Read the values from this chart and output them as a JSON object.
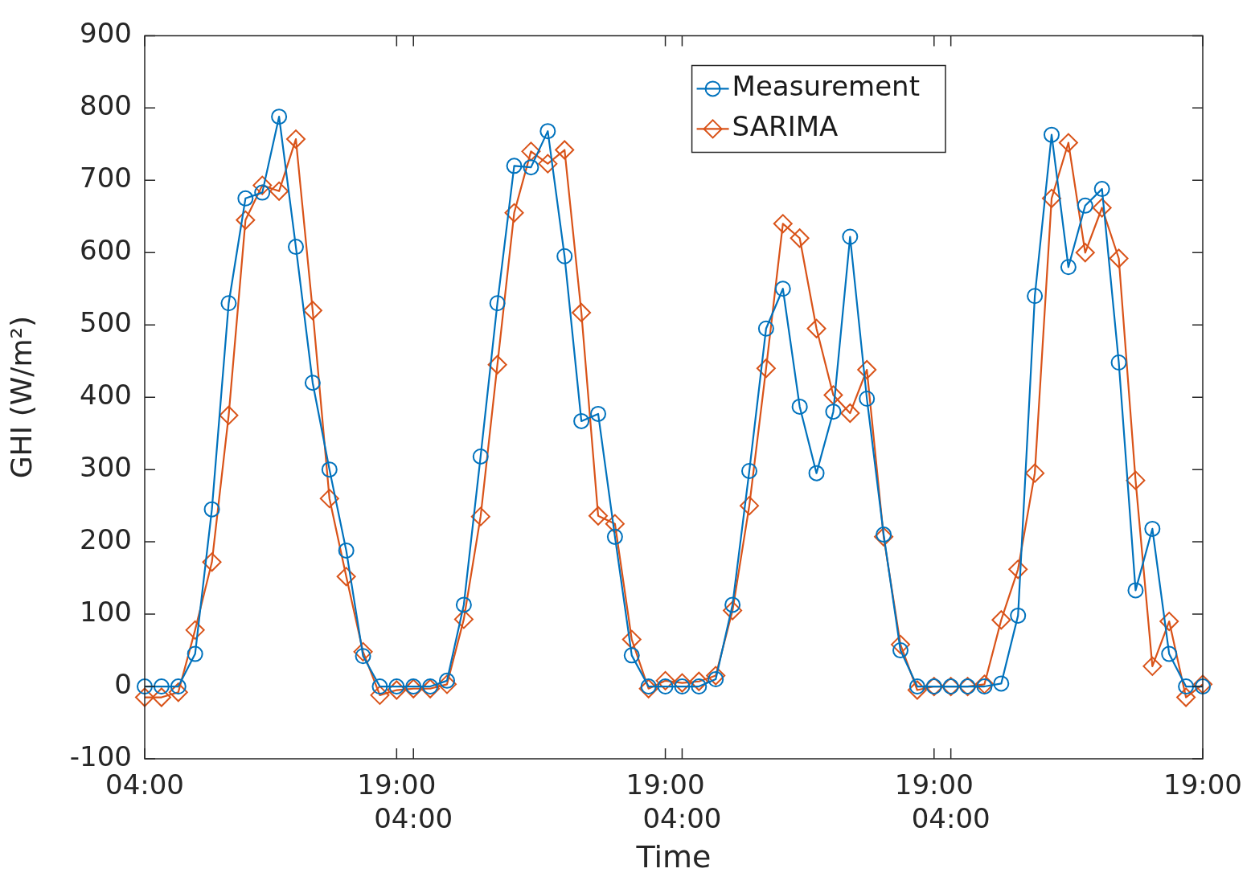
{
  "chart_data": {
    "type": "line",
    "xlabel": "Time",
    "ylabel": "GHI (W/m²)",
    "categories": [
      "04:00",
      null,
      null,
      null,
      null,
      null,
      null,
      null,
      null,
      null,
      null,
      null,
      null,
      null,
      null,
      "19:00",
      "04:00",
      null,
      null,
      null,
      null,
      null,
      null,
      null,
      null,
      null,
      null,
      null,
      null,
      null,
      null,
      "19:00",
      "04:00",
      null,
      null,
      null,
      null,
      null,
      null,
      null,
      null,
      null,
      null,
      null,
      null,
      null,
      null,
      "19:00",
      "04:00",
      null,
      null,
      null,
      null,
      null,
      null,
      null,
      null,
      null,
      null,
      null,
      null,
      null,
      null,
      "19:00"
    ],
    "series": [
      {
        "name": "Measurement",
        "color": "#0072bd",
        "marker": "circle",
        "values": [
          0,
          0,
          0,
          45,
          245,
          530,
          675,
          683,
          788,
          608,
          420,
          300,
          188,
          42,
          0,
          0,
          0,
          0,
          8,
          113,
          318,
          530,
          720,
          718,
          768,
          595,
          367,
          377,
          207,
          43,
          0,
          0,
          0,
          0,
          10,
          113,
          298,
          495,
          550,
          387,
          295,
          380,
          622,
          398,
          210,
          50,
          0,
          0,
          0,
          0,
          0,
          4,
          98,
          540,
          763,
          580,
          665,
          688,
          448,
          133,
          218,
          45,
          0,
          0
        ]
      },
      {
        "name": "SARIMA",
        "color": "#d95319",
        "marker": "diamond",
        "values": [
          -15,
          -15,
          -8,
          78,
          172,
          375,
          645,
          693,
          685,
          757,
          520,
          260,
          152,
          48,
          -12,
          -5,
          -3,
          -3,
          3,
          93,
          235,
          445,
          655,
          740,
          723,
          742,
          517,
          236,
          225,
          65,
          -3,
          8,
          5,
          7,
          15,
          105,
          250,
          440,
          640,
          620,
          495,
          403,
          378,
          438,
          207,
          58,
          -5,
          0,
          0,
          0,
          3,
          92,
          162,
          295,
          675,
          752,
          600,
          662,
          592,
          285,
          28,
          90,
          -15,
          3
        ]
      }
    ],
    "ylim": [
      -100,
      900
    ],
    "yticks": [
      -100,
      0,
      100,
      200,
      300,
      400,
      500,
      600,
      700,
      800,
      900
    ],
    "grid": false,
    "legend": "top right",
    "line_style": "solid"
  }
}
